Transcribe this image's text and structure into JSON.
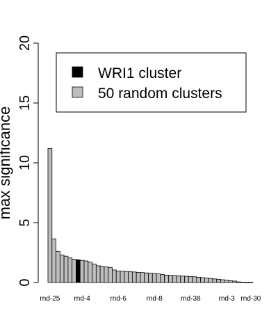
{
  "chart_data": {
    "type": "bar",
    "title": "",
    "xlabel": "",
    "ylabel": "max significance",
    "ylim": [
      0,
      20
    ],
    "yticks": [
      0,
      5,
      10,
      15,
      20
    ],
    "grid": false,
    "legend_placement": "top-right",
    "legend": [
      {
        "label": "WRI1 cluster",
        "color": "#000000"
      },
      {
        "label": "50 random clusters",
        "color": "#bebebe"
      }
    ],
    "series": [
      {
        "values": [
          11.2,
          3.65,
          2.6,
          2.3,
          2.2,
          2.05,
          1.95,
          1.9,
          1.85,
          1.8,
          1.7,
          1.55,
          1.4,
          1.35,
          1.3,
          1.25,
          1.05,
          0.95,
          0.95,
          0.92,
          0.9,
          0.88,
          0.85,
          0.83,
          0.8,
          0.78,
          0.75,
          0.72,
          0.66,
          0.62,
          0.6,
          0.58,
          0.56,
          0.54,
          0.52,
          0.5,
          0.48,
          0.44,
          0.4,
          0.37,
          0.34,
          0.3,
          0.27,
          0.23,
          0.2,
          0.15,
          0.12,
          0.05,
          0.03,
          0.02,
          0.01
        ]
      }
    ],
    "highlight_index": 7,
    "bar_colors": {
      "default": "#bebebe",
      "highlight": "#000000"
    },
    "x_tick_labels": [
      {
        "index": 0,
        "label": "rnd-25"
      },
      {
        "index": 8,
        "label": "rnd-4"
      },
      {
        "index": 17,
        "label": "rnd-6"
      },
      {
        "index": 26,
        "label": "rnd-8"
      },
      {
        "index": 35,
        "label": "rnd-38"
      },
      {
        "index": 44,
        "label": "rnd-3"
      },
      {
        "index": 50,
        "label": "rnd-30"
      }
    ]
  }
}
